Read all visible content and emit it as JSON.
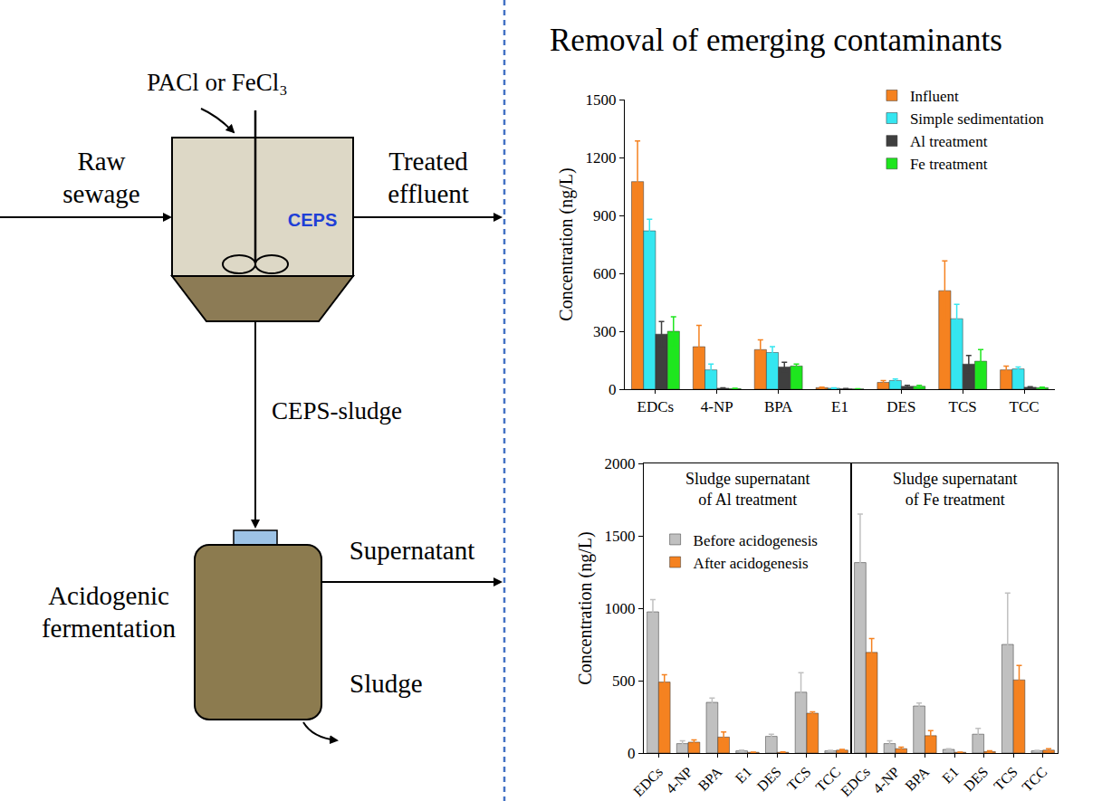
{
  "title": "Removal of emerging contaminants",
  "diagram": {
    "coagulant": "PACl or FeCl₃",
    "inflow": [
      "Raw",
      "sewage"
    ],
    "reactor": "CEPS",
    "outflow": [
      "Treated",
      "effluent"
    ],
    "sludge_line": "CEPS-sludge",
    "fermenter": [
      "Acidogenic",
      "fermentation"
    ],
    "supernatant": "Supernatant",
    "residue": "Sludge"
  },
  "chart_data": [
    {
      "type": "bar",
      "y_label": "Concentration (ng/L)",
      "categories": [
        "EDCs",
        "4-NP",
        "BPA",
        "E1",
        "DES",
        "TCS",
        "TCC"
      ],
      "series": [
        {
          "name": "Influent",
          "color": "#f58220",
          "values": [
            1075,
            220,
            205,
            8,
            35,
            510,
            100
          ],
          "errors": [
            210,
            110,
            50,
            3,
            10,
            155,
            20
          ]
        },
        {
          "name": "Simple sedimentation",
          "color": "#35e6f0",
          "values": [
            820,
            100,
            190,
            5,
            45,
            365,
            105
          ],
          "errors": [
            60,
            30,
            30,
            2,
            8,
            75,
            10
          ]
        },
        {
          "name": "Al treatment",
          "color": "#3f3f3f",
          "values": [
            285,
            5,
            115,
            2,
            15,
            130,
            10
          ],
          "errors": [
            65,
            2,
            25,
            1,
            5,
            45,
            3
          ]
        },
        {
          "name": "Fe treatment",
          "color": "#1ee61e",
          "values": [
            300,
            3,
            120,
            1,
            15,
            145,
            8
          ],
          "errors": [
            75,
            2,
            10,
            1,
            5,
            60,
            3
          ]
        }
      ],
      "ylim": [
        0,
        1500
      ],
      "yticks": [
        0,
        300,
        600,
        900,
        1200,
        1500
      ],
      "legend": "upper right"
    },
    {
      "type": "bar",
      "title": [
        "Sludge supernatant",
        "of Al treatment"
      ],
      "y_label": "Concentration (ng/L)",
      "categories": [
        "EDCs",
        "4-NP",
        "BPA",
        "E1",
        "DES",
        "TCS",
        "TCC"
      ],
      "series": [
        {
          "name": "Before acidogenesis",
          "color": "#c0c0c0",
          "values": [
            975,
            65,
            350,
            15,
            115,
            420,
            15
          ],
          "errors": [
            85,
            20,
            30,
            5,
            15,
            135,
            3
          ]
        },
        {
          "name": "After acidogenesis",
          "color": "#f58220",
          "values": [
            490,
            75,
            110,
            5,
            5,
            275,
            20
          ],
          "errors": [
            50,
            15,
            35,
            2,
            3,
            10,
            5
          ]
        }
      ],
      "ylim": [
        0,
        2000
      ],
      "yticks": [
        0,
        500,
        1000,
        1500,
        2000
      ],
      "legend": "upper left"
    },
    {
      "type": "bar",
      "title": [
        "Sludge supernatant",
        "of Fe treatment"
      ],
      "categories": [
        "EDCs",
        "4-NP",
        "BPA",
        "E1",
        "DES",
        "TCS",
        "TCC"
      ],
      "series": [
        {
          "name": "Before acidogenesis",
          "color": "#c0c0c0",
          "values": [
            1315,
            65,
            325,
            25,
            130,
            750,
            15
          ],
          "errors": [
            335,
            20,
            20,
            5,
            40,
            355,
            3
          ]
        },
        {
          "name": "After acidogenesis",
          "color": "#f58220",
          "values": [
            695,
            30,
            120,
            5,
            10,
            505,
            20
          ],
          "errors": [
            95,
            10,
            35,
            2,
            5,
            100,
            10
          ]
        }
      ],
      "ylim": [
        0,
        2000
      ],
      "yticks": [
        0,
        500,
        1000,
        1500,
        2000
      ],
      "tick_labels": "x"
    }
  ]
}
